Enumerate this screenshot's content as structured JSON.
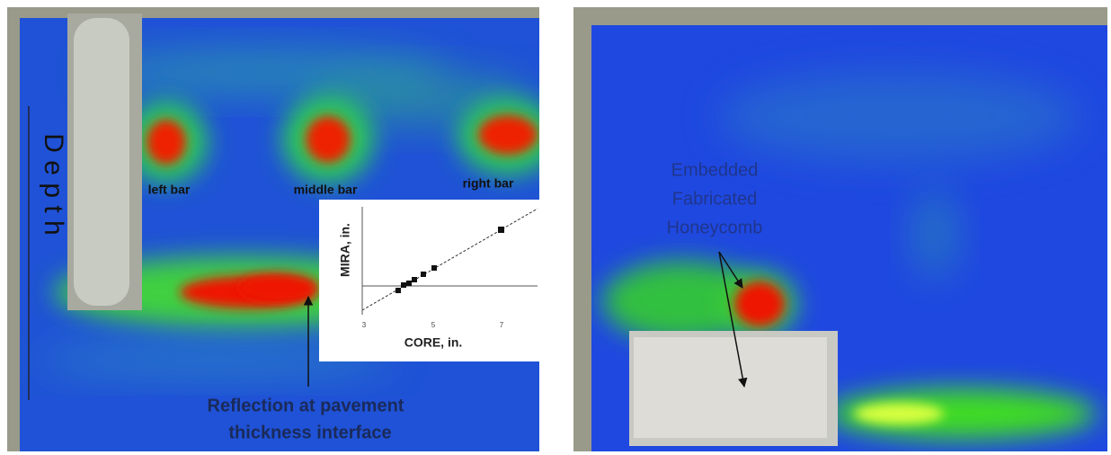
{
  "left_panel": {
    "depth_label": "D e p t h",
    "bar_labels": [
      "left bar",
      "middle bar",
      "right bar"
    ],
    "reflection_label": [
      "Reflection at pavement",
      "thickness interface"
    ],
    "inset": {
      "y_label": "MIRA, in.",
      "x_label": "CORE, in.",
      "x_ticks": [
        "3",
        "5",
        "7"
      ]
    }
  },
  "right_panel": {
    "annotation": [
      "Embedded",
      "Fabricated",
      "Honeycomb"
    ]
  }
}
